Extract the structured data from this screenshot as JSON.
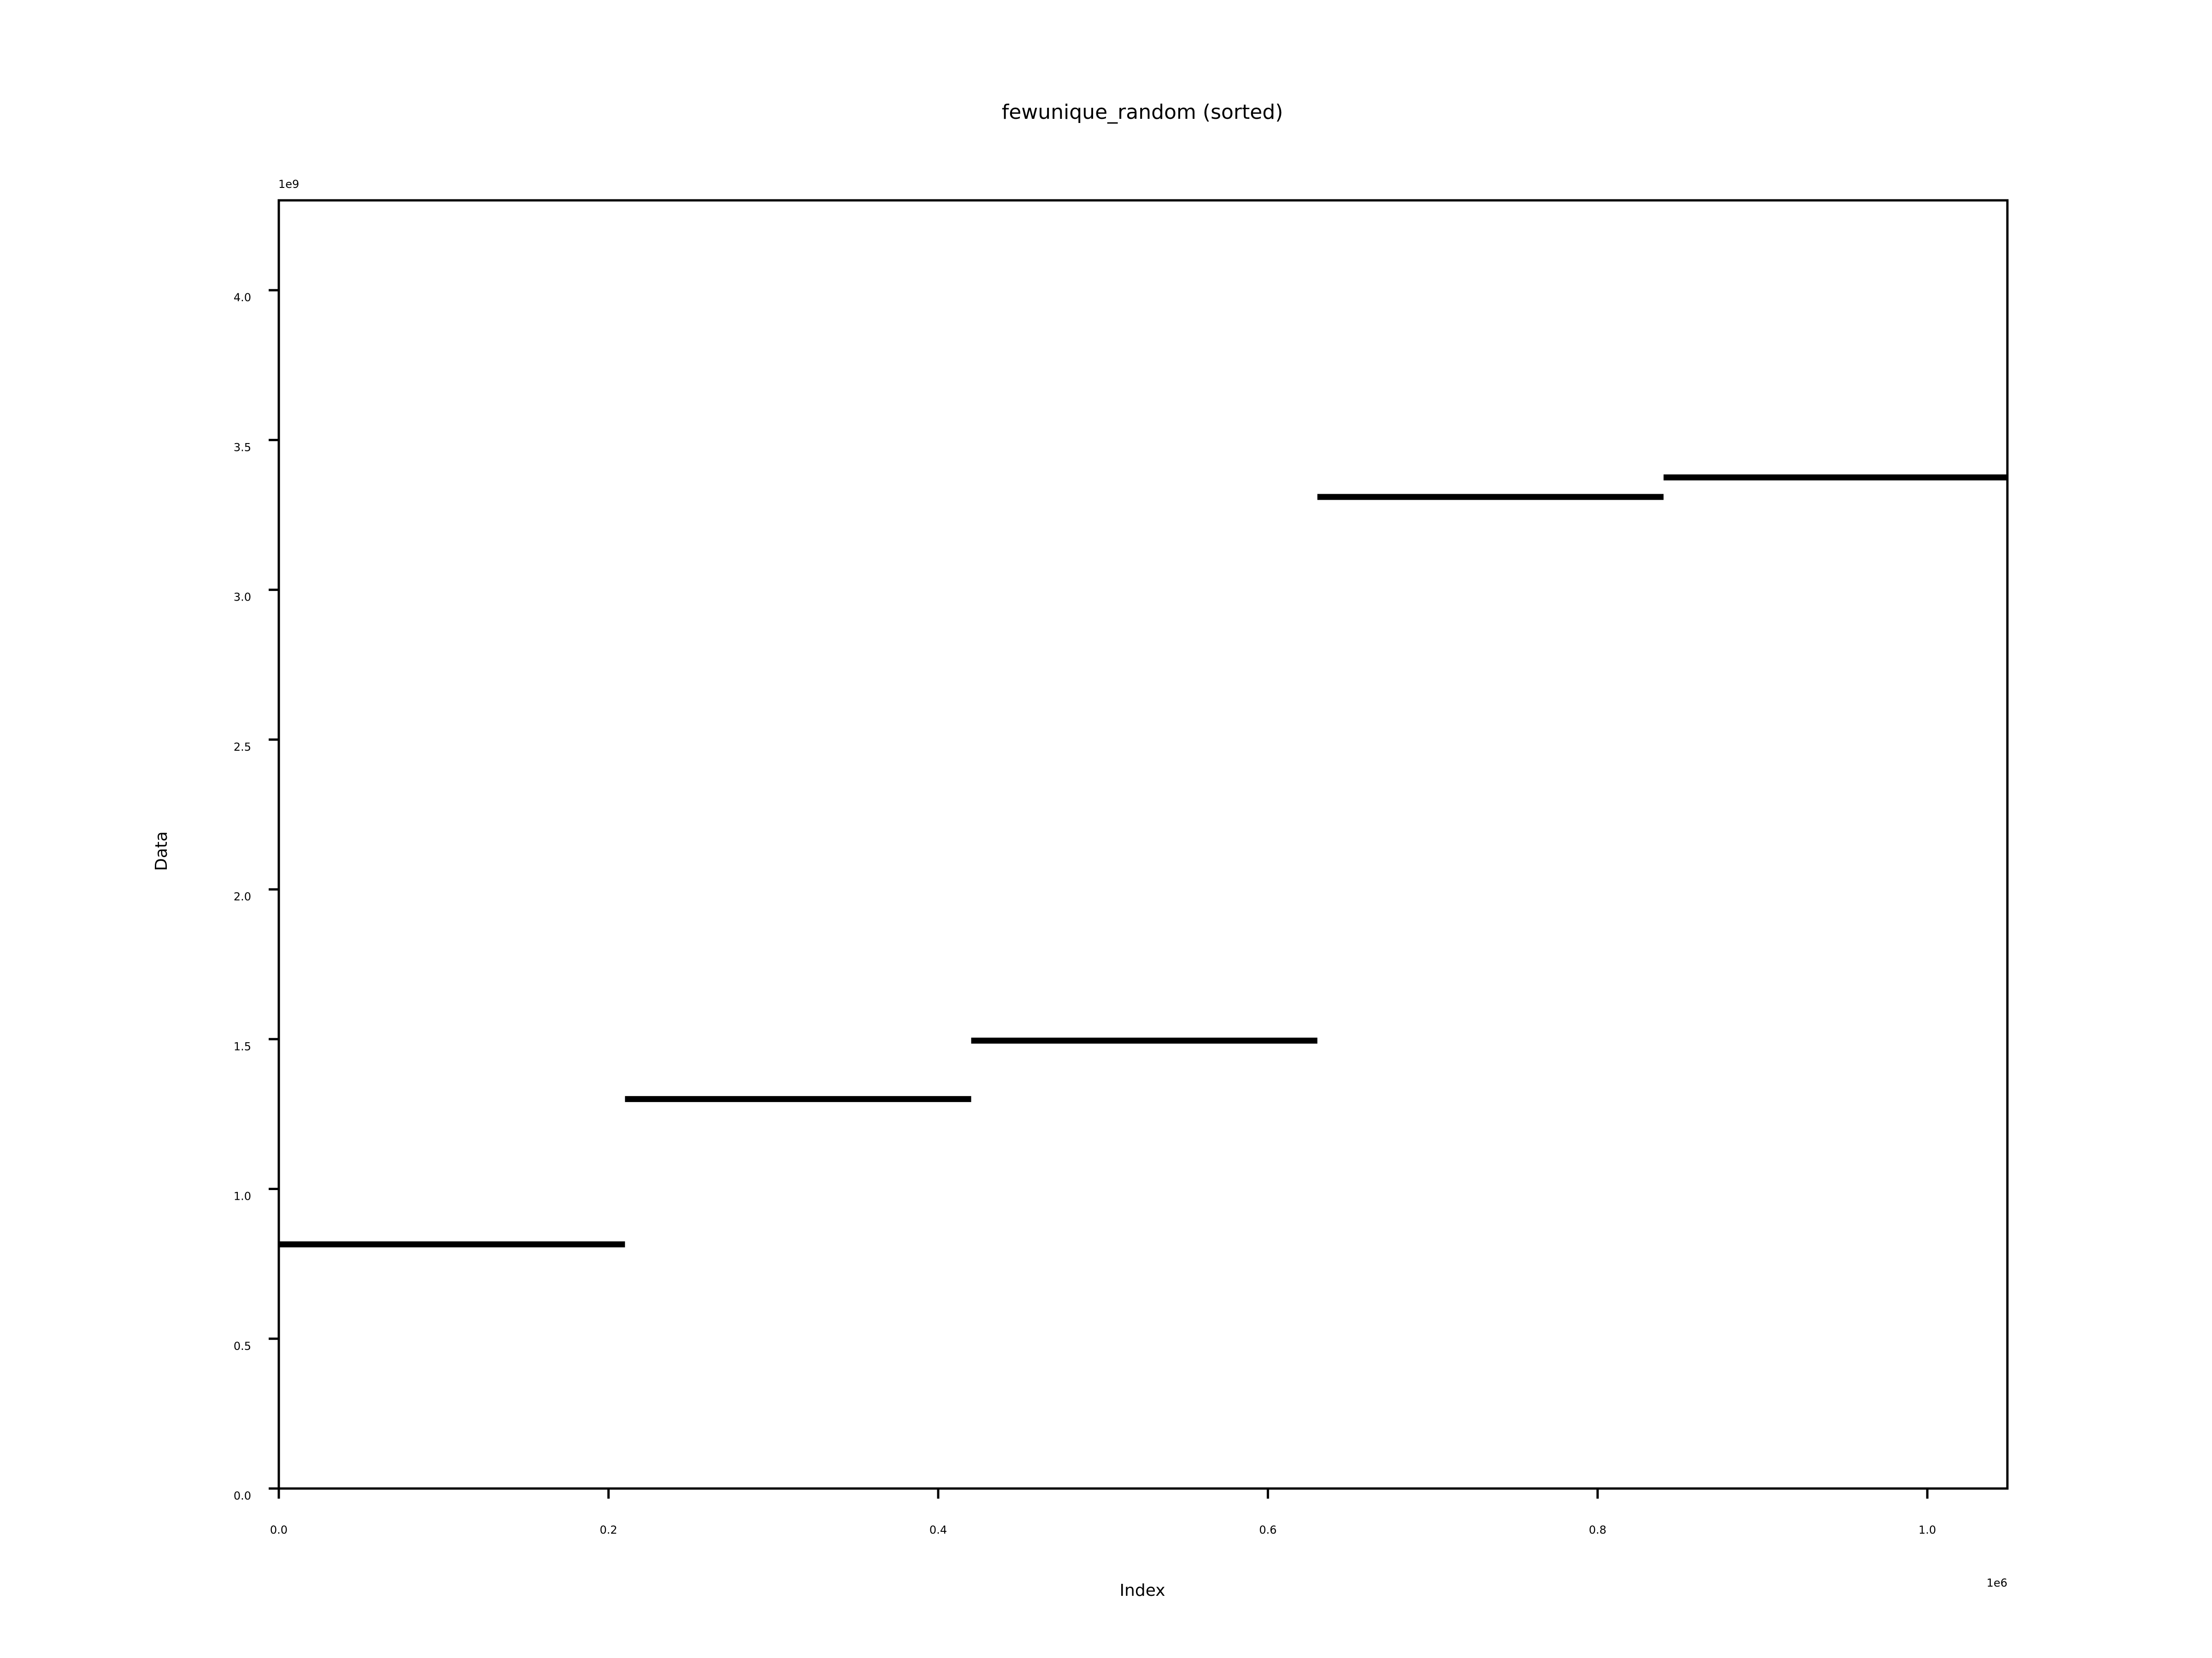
{
  "chart_data": {
    "type": "line",
    "title": "fewunique_random (sorted)",
    "xlabel": "Index",
    "ylabel": "Data",
    "x_offset_label": "1e6",
    "y_offset_label": "1e9",
    "xlim": [
      0,
      1.048576
    ],
    "ylim": [
      0,
      4.3
    ],
    "x_ticks": [
      {
        "value": 0.0,
        "label": "0.0"
      },
      {
        "value": 0.2,
        "label": "0.2"
      },
      {
        "value": 0.4,
        "label": "0.4"
      },
      {
        "value": 0.6,
        "label": "0.6"
      },
      {
        "value": 0.8,
        "label": "0.8"
      },
      {
        "value": 1.0,
        "label": "1.0"
      }
    ],
    "y_ticks": [
      {
        "value": 0.0,
        "label": "0.0"
      },
      {
        "value": 0.5,
        "label": "0.5"
      },
      {
        "value": 1.0,
        "label": "1.0"
      },
      {
        "value": 1.5,
        "label": "1.5"
      },
      {
        "value": 2.0,
        "label": "2.0"
      },
      {
        "value": 2.5,
        "label": "2.5"
      },
      {
        "value": 3.0,
        "label": "3.0"
      },
      {
        "value": 3.5,
        "label": "3.5"
      },
      {
        "value": 4.0,
        "label": "4.0"
      }
    ],
    "grid": false,
    "legend": "none",
    "line_color": "#000000",
    "segments": [
      {
        "x_start": 0.0,
        "x_end": 0.21,
        "y": 0.815
      },
      {
        "x_start": 0.21,
        "x_end": 0.42,
        "y": 1.3
      },
      {
        "x_start": 0.42,
        "x_end": 0.63,
        "y": 1.495
      },
      {
        "x_start": 0.63,
        "x_end": 0.84,
        "y": 3.31
      },
      {
        "x_start": 0.84,
        "x_end": 1.048576,
        "y": 3.375
      }
    ]
  }
}
